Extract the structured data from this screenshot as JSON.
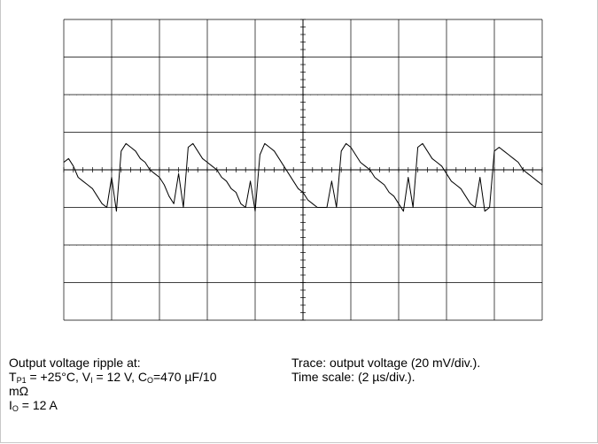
{
  "chart_data": {
    "type": "line",
    "title": "",
    "xlabel": "",
    "ylabel": "",
    "divisions": {
      "x": 10,
      "y": 8
    },
    "xlim": [
      0,
      20
    ],
    "ylim": [
      -80,
      80
    ],
    "x_unit": "µs",
    "y_unit": "mV",
    "grid": true,
    "series": [
      {
        "name": "",
        "color": "#000000",
        "x": [
          0.0,
          0.2,
          0.4,
          0.6,
          0.8,
          1.0,
          1.2,
          1.4,
          1.6,
          1.8,
          2.0,
          2.2,
          2.4,
          2.6,
          2.8,
          3.0,
          3.2,
          3.4,
          3.6,
          3.8,
          4.0,
          4.2,
          4.4,
          4.6,
          4.8,
          5.0,
          5.2,
          5.4,
          5.6,
          5.8,
          6.0,
          6.2,
          6.4,
          6.6,
          6.8,
          7.0,
          7.2,
          7.4,
          7.6,
          7.8,
          8.0,
          8.2,
          8.4,
          8.6,
          8.8,
          9.0,
          9.2,
          9.4,
          9.6,
          9.8,
          10.0,
          10.2,
          10.4,
          10.6,
          10.8,
          11.0,
          11.2,
          11.4,
          11.6,
          11.8,
          12.0,
          12.2,
          12.4,
          12.6,
          12.8,
          13.0,
          13.2,
          13.4,
          13.6,
          13.8,
          14.0,
          14.2,
          14.4,
          14.6,
          14.8,
          15.0,
          15.2,
          15.4,
          15.6,
          15.8,
          16.0,
          16.2,
          16.4,
          16.6,
          16.8,
          17.0,
          17.2,
          17.4,
          17.6,
          17.8,
          18.0,
          18.2,
          18.4,
          18.6,
          18.8,
          19.0,
          19.2,
          19.4,
          19.6,
          19.8,
          20.0
        ],
        "y": [
          4,
          6,
          2,
          -4,
          -6,
          -8,
          -10,
          -14,
          -18,
          -20,
          -4,
          -22,
          10,
          14,
          12,
          10,
          6,
          4,
          0,
          -2,
          -4,
          -8,
          -14,
          -18,
          -2,
          -20,
          12,
          14,
          10,
          6,
          4,
          2,
          0,
          -4,
          -6,
          -10,
          -12,
          -18,
          -20,
          -6,
          -22,
          8,
          14,
          12,
          10,
          6,
          2,
          -2,
          -6,
          -10,
          -12,
          -16,
          -18,
          -20,
          -20,
          -20,
          -6,
          -20,
          10,
          14,
          12,
          8,
          4,
          2,
          0,
          -4,
          -6,
          -8,
          -12,
          -14,
          -18,
          -22,
          -4,
          -20,
          12,
          14,
          10,
          6,
          4,
          2,
          -2,
          -6,
          -8,
          -10,
          -14,
          -18,
          -20,
          -4,
          -22,
          -20,
          10,
          12,
          10,
          8,
          6,
          4,
          0,
          -2,
          -4,
          -6,
          -8
        ]
      }
    ]
  },
  "caption": {
    "left_line1": "Output voltage ripple at:",
    "temp_label": "T",
    "temp_sub": "P1",
    "temp_rest": " = +25°C, V",
    "vi_sub": "I",
    "vi_rest": " =  12 V, C",
    "co_sub": "O",
    "co_rest": "=470 µF/10",
    "left_line3": "mΩ",
    "io_label": "I",
    "io_sub": "O",
    "io_rest": " = 12 A",
    "right_line1": "Trace: output voltage (20 mV/div.).",
    "right_line2": "Time scale: (2 µs/div.)."
  }
}
